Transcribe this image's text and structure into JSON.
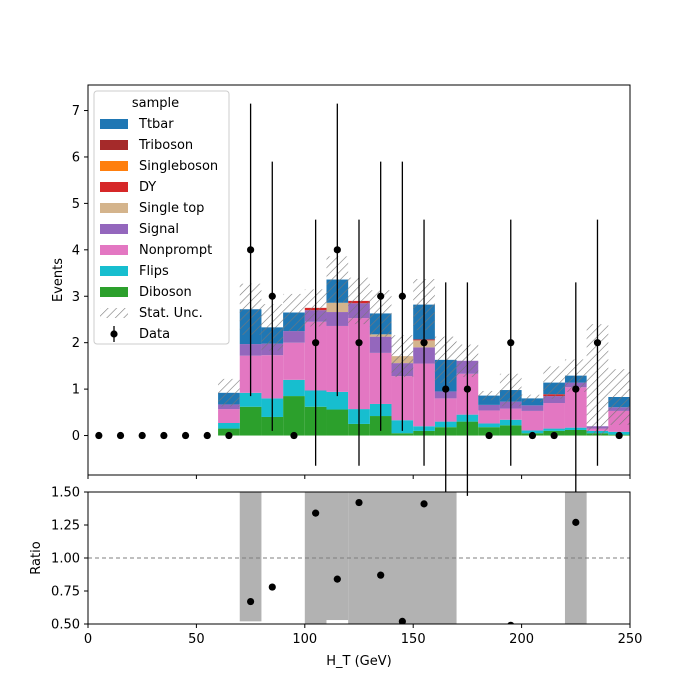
{
  "chart_data": [
    {
      "type": "bar",
      "stacked": true,
      "ylabel": "Events",
      "ylim": [
        -0.85,
        7.55
      ],
      "yticks": [
        0,
        1,
        2,
        3,
        4,
        5,
        6,
        7
      ],
      "xlim": [
        0,
        250
      ],
      "bin_edges": [
        60,
        70,
        80,
        90,
        100,
        110,
        120,
        130,
        140,
        150,
        160,
        170,
        180,
        190,
        200,
        210,
        220,
        230,
        240,
        250
      ],
      "legend": {
        "title": "sample",
        "placement": "upper left",
        "labels": {
          "stat_unc": "Stat. Unc.",
          "data": "Data"
        }
      },
      "series": [
        {
          "name": "Diboson",
          "color": "#2ca02c",
          "values": [
            0.15,
            0.62,
            0.4,
            0.85,
            0.62,
            0.56,
            0.25,
            0.42,
            0.05,
            0.1,
            0.18,
            0.3,
            0.18,
            0.22,
            0.05,
            0.1,
            0.12,
            0.05,
            0.02
          ]
        },
        {
          "name": "Flips",
          "color": "#17becf",
          "values": [
            0.12,
            0.3,
            0.4,
            0.35,
            0.35,
            0.38,
            0.32,
            0.26,
            0.28,
            0.1,
            0.12,
            0.15,
            0.08,
            0.12,
            0.06,
            0.05,
            0.05,
            0.05,
            0.06
          ]
        },
        {
          "name": "Nonprompt",
          "color": "#e377c2",
          "values": [
            0.3,
            0.8,
            0.93,
            0.8,
            1.48,
            1.42,
            1.96,
            1.1,
            0.95,
            1.35,
            0.5,
            0.88,
            0.28,
            0.24,
            0.42,
            0.55,
            0.87,
            0.05,
            0.45
          ]
        },
        {
          "name": "Signal",
          "color": "#9467bd",
          "values": [
            0.1,
            0.25,
            0.25,
            0.25,
            0.25,
            0.3,
            0.32,
            0.35,
            0.28,
            0.35,
            0.15,
            0.28,
            0.12,
            0.15,
            0.12,
            0.15,
            0.1,
            0.05,
            0.08
          ]
        },
        {
          "name": "Single top",
          "color": "#d4b48c",
          "values": [
            0.0,
            0.0,
            0.0,
            0.0,
            0.0,
            0.2,
            0.0,
            0.05,
            0.15,
            0.15,
            0.0,
            0.0,
            0.0,
            0.0,
            0.0,
            0.0,
            0.0,
            0.0,
            0.0
          ]
        },
        {
          "name": "DY",
          "color": "#d62728",
          "values": [
            0.0,
            0.0,
            0.0,
            0.0,
            0.05,
            0.0,
            0.05,
            0.0,
            0.0,
            0.02,
            0.0,
            0.0,
            0.0,
            0.0,
            0.0,
            0.04,
            0.0,
            0.0,
            0.0
          ]
        },
        {
          "name": "Singleboson",
          "color": "#ff7f0e",
          "values": [
            0.0,
            0.0,
            0.0,
            0.0,
            0.0,
            0.0,
            0.0,
            0.0,
            0.0,
            0.0,
            0.0,
            0.0,
            0.0,
            0.0,
            0.0,
            0.0,
            0.0,
            0.0,
            0.0
          ]
        },
        {
          "name": "Triboson",
          "color": "#a52a2a",
          "values": [
            0.0,
            0.0,
            0.0,
            0.0,
            0.0,
            0.0,
            0.0,
            0.0,
            0.0,
            0.0,
            0.0,
            0.0,
            0.0,
            0.0,
            0.0,
            0.0,
            0.0,
            0.0,
            0.0
          ]
        },
        {
          "name": "Ttbar",
          "color": "#1f77b4",
          "values": [
            0.25,
            0.75,
            0.35,
            0.4,
            0.0,
            0.5,
            0.0,
            0.45,
            0.0,
            0.75,
            0.68,
            0.0,
            0.2,
            0.25,
            0.15,
            0.25,
            0.15,
            0.0,
            0.22
          ]
        }
      ],
      "stat_unc": [
        0.3,
        0.55,
        0.5,
        0.4,
        0.4,
        0.5,
        0.5,
        0.5,
        0.45,
        0.55,
        0.5,
        0.35,
        0.1,
        0.35,
        0.08,
        0.35,
        0.35,
        2.2,
        0.6
      ],
      "data": {
        "name": "Data",
        "color": "#000000",
        "x": [
          5,
          15,
          25,
          35,
          45,
          55,
          65,
          75,
          85,
          95,
          105,
          115,
          125,
          135,
          145,
          155,
          165,
          175,
          185,
          195,
          205,
          215,
          225,
          235,
          245
        ],
        "y": [
          0,
          0,
          0,
          0,
          0,
          0,
          0,
          4,
          3,
          0,
          2,
          4,
          2,
          3,
          3,
          2,
          1,
          1,
          0,
          2,
          0,
          0,
          1,
          2,
          0
        ],
        "err": [
          0,
          0,
          0,
          0,
          0,
          0,
          0,
          3.15,
          2.9,
          0,
          2.65,
          3.15,
          2.65,
          2.9,
          2.9,
          2.65,
          2.3,
          2.3,
          0,
          2.65,
          0,
          0,
          2.3,
          2.65,
          0
        ]
      }
    },
    {
      "type": "scatter",
      "xlabel": "H_T (GeV)",
      "ylabel": "Ratio",
      "xlim": [
        0,
        250
      ],
      "ylim": [
        0.5,
        1.5
      ],
      "xticks": [
        0,
        50,
        100,
        150,
        200,
        250
      ],
      "yticks": [
        0.5,
        0.75,
        1.0,
        1.25,
        1.5
      ],
      "ytick_labels": [
        "0.50",
        "0.75",
        "1.00",
        "1.25",
        "1.50"
      ],
      "reference_line": 1.0,
      "points": {
        "x": [
          75,
          85,
          105,
          115,
          125,
          135,
          145,
          155,
          195,
          225
        ],
        "y": [
          0.67,
          0.78,
          1.34,
          0.84,
          1.42,
          0.87,
          0.52,
          1.41,
          0.49,
          1.27
        ]
      },
      "unc_bands": [
        {
          "x0": 70,
          "x1": 80,
          "y0": 0.52,
          "y1": 1.5
        },
        {
          "x0": 100,
          "x1": 110,
          "y0": 0.5,
          "y1": 1.5
        },
        {
          "x0": 110,
          "x1": 120,
          "y0": 0.53,
          "y1": 1.5
        },
        {
          "x0": 120,
          "x1": 170,
          "y0": 0.5,
          "y1": 1.5
        },
        {
          "x0": 220,
          "x1": 230,
          "y0": 0.5,
          "y1": 1.5
        }
      ]
    }
  ]
}
